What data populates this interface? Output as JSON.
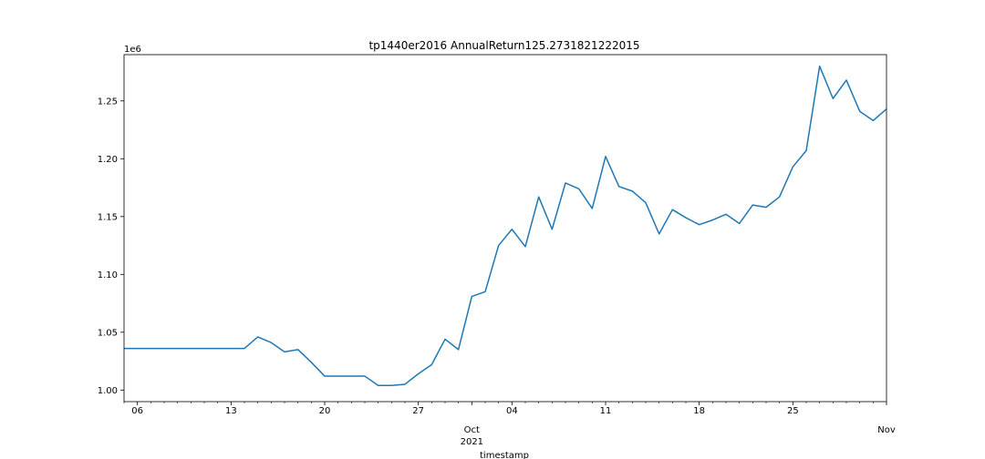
{
  "chart_data": {
    "type": "line",
    "title": "tp1440er2016 AnnualReturn125.2731821222015",
    "xlabel": "timestamp",
    "ylabel": "",
    "y_multiplier_label": "1e6",
    "xlim": [
      "2021-09-05",
      "2021-11-01"
    ],
    "ylim": [
      0.99,
      1.29
    ],
    "yticks": [
      {
        "value": 1.0,
        "label": "1.00"
      },
      {
        "value": 1.05,
        "label": "1.05"
      },
      {
        "value": 1.1,
        "label": "1.10"
      },
      {
        "value": 1.15,
        "label": "1.15"
      },
      {
        "value": 1.2,
        "label": "1.20"
      },
      {
        "value": 1.25,
        "label": "1.25"
      }
    ],
    "xticks": [
      {
        "date": "2021-09-06",
        "label": "06"
      },
      {
        "date": "2021-09-13",
        "label": "13"
      },
      {
        "date": "2021-09-20",
        "label": "20"
      },
      {
        "date": "2021-09-27",
        "label": "27"
      },
      {
        "date": "2021-10-01",
        "label": "Oct",
        "label2": "2021"
      },
      {
        "date": "2021-10-04",
        "label": "04"
      },
      {
        "date": "2021-10-11",
        "label": "11"
      },
      {
        "date": "2021-10-18",
        "label": "18"
      },
      {
        "date": "2021-10-25",
        "label": "25"
      },
      {
        "date": "2021-11-01",
        "label": "Nov"
      }
    ],
    "grid": false,
    "color": "#1f77b4",
    "series": [
      {
        "x": [
          "2021-09-05",
          "2021-09-06",
          "2021-09-07",
          "2021-09-08",
          "2021-09-09",
          "2021-09-10",
          "2021-09-11",
          "2021-09-12",
          "2021-09-13",
          "2021-09-14",
          "2021-09-15",
          "2021-09-16",
          "2021-09-17",
          "2021-09-18",
          "2021-09-19",
          "2021-09-20",
          "2021-09-21",
          "2021-09-22",
          "2021-09-23",
          "2021-09-24",
          "2021-09-25",
          "2021-09-26",
          "2021-09-27",
          "2021-09-28",
          "2021-09-29",
          "2021-09-30",
          "2021-10-01",
          "2021-10-02",
          "2021-10-03",
          "2021-10-04",
          "2021-10-05",
          "2021-10-06",
          "2021-10-07",
          "2021-10-08",
          "2021-10-09",
          "2021-10-10",
          "2021-10-11",
          "2021-10-12",
          "2021-10-13",
          "2021-10-14",
          "2021-10-15",
          "2021-10-16",
          "2021-10-17",
          "2021-10-18",
          "2021-10-19",
          "2021-10-20",
          "2021-10-21",
          "2021-10-22",
          "2021-10-23",
          "2021-10-24",
          "2021-10-25",
          "2021-10-26",
          "2021-10-27",
          "2021-10-28",
          "2021-10-29",
          "2021-10-30",
          "2021-10-31",
          "2021-11-01"
        ],
        "y": [
          1.036,
          1.036,
          1.036,
          1.036,
          1.036,
          1.036,
          1.036,
          1.036,
          1.036,
          1.036,
          1.046,
          1.041,
          1.033,
          1.035,
          1.024,
          1.012,
          1.012,
          1.012,
          1.012,
          1.004,
          1.004,
          1.005,
          1.014,
          1.022,
          1.044,
          1.035,
          1.081,
          1.085,
          1.125,
          1.139,
          1.124,
          1.167,
          1.139,
          1.179,
          1.174,
          1.157,
          1.202,
          1.176,
          1.172,
          1.162,
          1.135,
          1.156,
          1.149,
          1.143,
          1.147,
          1.152,
          1.144,
          1.16,
          1.158,
          1.167,
          1.193,
          1.207,
          1.28,
          1.252,
          1.268,
          1.241,
          1.233,
          1.243
        ]
      }
    ]
  }
}
